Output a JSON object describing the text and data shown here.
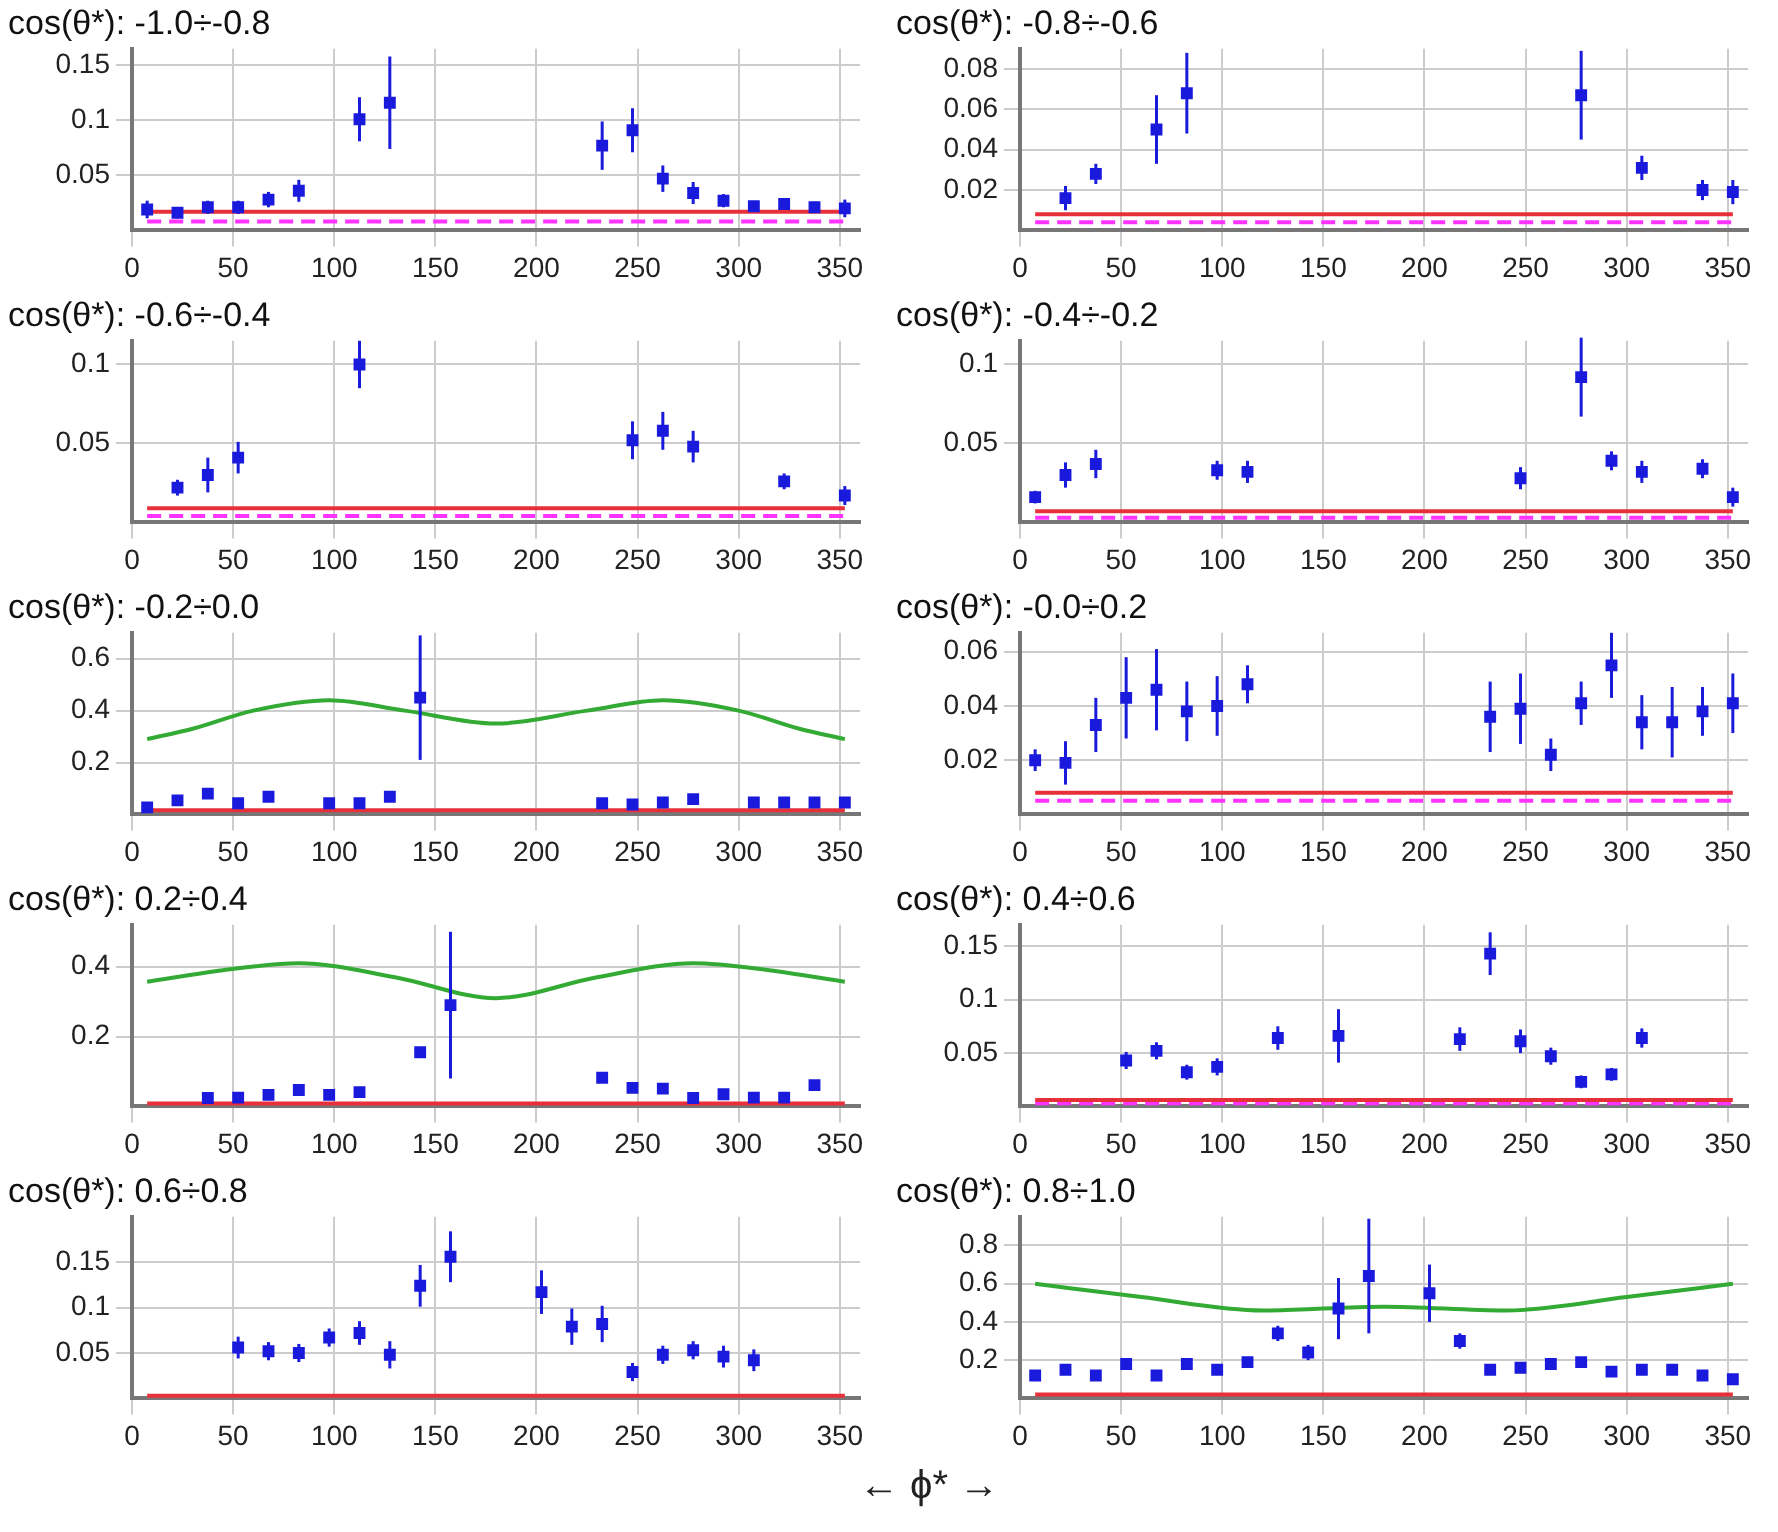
{
  "chart_data": [
    {
      "type": "scatter",
      "title": "cos(θ*): -1.0÷-0.8",
      "xlim": [
        0,
        360
      ],
      "xticks": [
        0,
        50,
        100,
        150,
        200,
        250,
        300,
        350
      ],
      "ylim": [
        0,
        0.165
      ],
      "yticks": [
        0.05,
        0.1,
        0.15
      ],
      "grid": true,
      "legend": false,
      "series": [
        {
          "type": "line",
          "color": "#e8303a",
          "x": [
            7.5,
            352.5
          ],
          "values": [
            0.017,
            0.017
          ]
        },
        {
          "type": "line",
          "color": "#ff33ff",
          "line_style": "dashed",
          "x": [
            7.5,
            352.5
          ],
          "values": [
            0.008,
            0.008
          ]
        },
        {
          "type": "scatter",
          "marker": "square",
          "color": "#1a1adc",
          "x": [
            7.5,
            22.5,
            37.5,
            52.5,
            67.5,
            82.5,
            112.5,
            127.5,
            232.5,
            247.5,
            262.5,
            277.5,
            292.5,
            307.5,
            322.5,
            337.5,
            352.5
          ],
          "values": [
            0.019,
            0.016,
            0.021,
            0.021,
            0.028,
            0.036,
            0.101,
            0.116,
            0.077,
            0.091,
            0.047,
            0.034,
            0.027,
            0.022,
            0.024,
            0.021,
            0.02
          ],
          "errors": [
            0.008,
            0.005,
            0.006,
            0.006,
            0.007,
            0.01,
            0.02,
            0.042,
            0.022,
            0.02,
            0.012,
            0.01,
            0.006,
            0.004,
            0.004,
            0.005,
            0.008
          ]
        }
      ]
    },
    {
      "type": "scatter",
      "title": "cos(θ*): -0.8÷-0.6",
      "xlim": [
        0,
        360
      ],
      "xticks": [
        0,
        50,
        100,
        150,
        200,
        250,
        300,
        350
      ],
      "ylim": [
        0,
        0.09
      ],
      "yticks": [
        0.02,
        0.04,
        0.06,
        0.08
      ],
      "grid": true,
      "legend": false,
      "series": [
        {
          "type": "line",
          "color": "#e8303a",
          "x": [
            7.5,
            352.5
          ],
          "values": [
            0.008,
            0.008
          ]
        },
        {
          "type": "line",
          "color": "#ff33ff",
          "line_style": "dashed",
          "x": [
            7.5,
            352.5
          ],
          "values": [
            0.004,
            0.004
          ]
        },
        {
          "type": "scatter",
          "marker": "square",
          "color": "#1a1adc",
          "x": [
            22.5,
            37.5,
            67.5,
            82.5,
            277.5,
            307.5,
            337.5,
            352.5
          ],
          "values": [
            0.016,
            0.028,
            0.05,
            0.068,
            0.067,
            0.031,
            0.02,
            0.019
          ],
          "errors": [
            0.006,
            0.005,
            0.017,
            0.02,
            0.022,
            0.006,
            0.005,
            0.006
          ]
        }
      ]
    },
    {
      "type": "scatter",
      "title": "cos(θ*): -0.6÷-0.4",
      "xlim": [
        0,
        360
      ],
      "xticks": [
        0,
        50,
        100,
        150,
        200,
        250,
        300,
        350
      ],
      "ylim": [
        0,
        0.115
      ],
      "yticks": [
        0.05,
        0.1
      ],
      "grid": true,
      "legend": false,
      "series": [
        {
          "type": "line",
          "color": "#e8303a",
          "x": [
            7.5,
            352.5
          ],
          "values": [
            0.009,
            0.009
          ]
        },
        {
          "type": "line",
          "color": "#ff33ff",
          "line_style": "dashed",
          "x": [
            7.5,
            352.5
          ],
          "values": [
            0.004,
            0.004
          ]
        },
        {
          "type": "scatter",
          "marker": "square",
          "color": "#1a1adc",
          "x": [
            22.5,
            37.5,
            52.5,
            112.5,
            247.5,
            262.5,
            277.5,
            322.5,
            352.5
          ],
          "values": [
            0.022,
            0.03,
            0.041,
            0.1,
            0.052,
            0.058,
            0.048,
            0.026,
            0.017
          ],
          "errors": [
            0.005,
            0.011,
            0.01,
            0.015,
            0.012,
            0.012,
            0.01,
            0.005,
            0.006
          ]
        }
      ]
    },
    {
      "type": "scatter",
      "title": "cos(θ*): -0.4÷-0.2",
      "xlim": [
        0,
        360
      ],
      "xticks": [
        0,
        50,
        100,
        150,
        200,
        250,
        300,
        350
      ],
      "ylim": [
        0,
        0.115
      ],
      "yticks": [
        0.05,
        0.1
      ],
      "grid": true,
      "legend": false,
      "series": [
        {
          "type": "line",
          "color": "#e8303a",
          "x": [
            7.5,
            352.5
          ],
          "values": [
            0.007,
            0.007
          ]
        },
        {
          "type": "line",
          "color": "#ff33ff",
          "line_style": "dashed",
          "x": [
            7.5,
            352.5
          ],
          "values": [
            0.003,
            0.003
          ]
        },
        {
          "type": "scatter",
          "marker": "square",
          "color": "#1a1adc",
          "x": [
            7.5,
            22.5,
            37.5,
            97.5,
            112.5,
            247.5,
            277.5,
            292.5,
            307.5,
            337.5,
            352.5
          ],
          "values": [
            0.016,
            0.03,
            0.037,
            0.033,
            0.032,
            0.028,
            0.092,
            0.039,
            0.032,
            0.034,
            0.016
          ],
          "errors": [
            0.004,
            0.008,
            0.009,
            0.006,
            0.007,
            0.007,
            0.025,
            0.006,
            0.007,
            0.006,
            0.006
          ]
        }
      ]
    },
    {
      "type": "scatter",
      "title": "cos(θ*): -0.2÷0.0",
      "xlim": [
        0,
        360
      ],
      "xticks": [
        0,
        50,
        100,
        150,
        200,
        250,
        300,
        350
      ],
      "ylim": [
        0,
        0.7
      ],
      "yticks": [
        0.2,
        0.4,
        0.6
      ],
      "grid": true,
      "legend": false,
      "series": [
        {
          "type": "line",
          "color": "#e8303a",
          "x": [
            7.5,
            352.5
          ],
          "values": [
            0.016,
            0.016
          ]
        },
        {
          "type": "line",
          "color": "#33aa33",
          "x": [
            7.5,
            30,
            60,
            97.5,
            135,
            180,
            225,
            262.5,
            300,
            330,
            352.5
          ],
          "values": [
            0.29,
            0.33,
            0.4,
            0.44,
            0.4,
            0.35,
            0.4,
            0.44,
            0.4,
            0.33,
            0.29
          ]
        },
        {
          "type": "scatter",
          "marker": "square",
          "color": "#1a1adc",
          "x": [
            7.5,
            22.5,
            37.5,
            52.5,
            67.5,
            97.5,
            112.5,
            127.5,
            142.5,
            232.5,
            247.5,
            262.5,
            277.5,
            307.5,
            322.5,
            337.5,
            352.5
          ],
          "values": [
            0.027,
            0.054,
            0.08,
            0.043,
            0.068,
            0.043,
            0.043,
            0.068,
            0.45,
            0.043,
            0.038,
            0.046,
            0.059,
            0.046,
            0.046,
            0.046,
            0.046
          ],
          "errors": [
            null,
            null,
            null,
            null,
            null,
            null,
            null,
            null,
            0.24,
            null,
            null,
            null,
            null,
            null,
            null,
            null,
            null
          ]
        }
      ]
    },
    {
      "type": "scatter",
      "title": "cos(θ*): -0.0÷0.2",
      "xlim": [
        0,
        360
      ],
      "xticks": [
        0,
        50,
        100,
        150,
        200,
        250,
        300,
        350
      ],
      "ylim": [
        0,
        0.067
      ],
      "yticks": [
        0.02,
        0.04,
        0.06
      ],
      "grid": true,
      "legend": false,
      "series": [
        {
          "type": "line",
          "color": "#e8303a",
          "x": [
            7.5,
            352.5
          ],
          "values": [
            0.008,
            0.008
          ]
        },
        {
          "type": "line",
          "color": "#ff33ff",
          "line_style": "dashed",
          "x": [
            7.5,
            352.5
          ],
          "values": [
            0.005,
            0.005
          ]
        },
        {
          "type": "scatter",
          "marker": "square",
          "color": "#1a1adc",
          "x": [
            7.5,
            22.5,
            37.5,
            52.5,
            67.5,
            82.5,
            97.5,
            112.5,
            232.5,
            247.5,
            262.5,
            277.5,
            292.5,
            307.5,
            322.5,
            337.5,
            352.5
          ],
          "values": [
            0.02,
            0.019,
            0.033,
            0.043,
            0.046,
            0.038,
            0.04,
            0.048,
            0.036,
            0.039,
            0.022,
            0.041,
            0.055,
            0.034,
            0.034,
            0.038,
            0.041
          ],
          "errors": [
            0.004,
            0.008,
            0.01,
            0.015,
            0.015,
            0.011,
            0.011,
            0.007,
            0.013,
            0.013,
            0.006,
            0.008,
            0.012,
            0.01,
            0.013,
            0.009,
            0.011
          ]
        }
      ]
    },
    {
      "type": "scatter",
      "title": "cos(θ*): 0.2÷0.4",
      "xlim": [
        0,
        360
      ],
      "xticks": [
        0,
        50,
        100,
        150,
        200,
        250,
        300,
        350
      ],
      "ylim": [
        0,
        0.52
      ],
      "yticks": [
        0.2,
        0.4
      ],
      "grid": true,
      "legend": false,
      "series": [
        {
          "type": "line",
          "color": "#e8303a",
          "x": [
            7.5,
            352.5
          ],
          "values": [
            0.008,
            0.008
          ]
        },
        {
          "type": "line",
          "color": "#33aa33",
          "x": [
            7.5,
            45,
            82.5,
            130,
            180,
            230,
            277.5,
            315,
            352.5
          ],
          "values": [
            0.357,
            0.39,
            0.41,
            0.37,
            0.31,
            0.37,
            0.41,
            0.39,
            0.357
          ]
        },
        {
          "type": "scatter",
          "marker": "square",
          "color": "#1a1adc",
          "x": [
            37.5,
            52.5,
            67.5,
            82.5,
            97.5,
            112.5,
            142.5,
            157.5,
            232.5,
            247.5,
            262.5,
            277.5,
            292.5,
            307.5,
            322.5,
            337.5
          ],
          "values": [
            0.024,
            0.025,
            0.033,
            0.047,
            0.033,
            0.041,
            0.155,
            0.29,
            0.082,
            0.053,
            0.051,
            0.024,
            0.035,
            0.025,
            0.025,
            0.061
          ],
          "errors": [
            null,
            null,
            null,
            null,
            null,
            null,
            0.015,
            0.21,
            0.012,
            null,
            null,
            null,
            null,
            null,
            null,
            null
          ]
        }
      ]
    },
    {
      "type": "scatter",
      "title": "cos(θ*): 0.4÷0.6",
      "xlim": [
        0,
        360
      ],
      "xticks": [
        0,
        50,
        100,
        150,
        200,
        250,
        300,
        350
      ],
      "ylim": [
        0,
        0.17
      ],
      "yticks": [
        0.05,
        0.1,
        0.15
      ],
      "grid": true,
      "legend": false,
      "series": [
        {
          "type": "line",
          "color": "#e8303a",
          "x": [
            7.5,
            352.5
          ],
          "values": [
            0.006,
            0.006
          ]
        },
        {
          "type": "line",
          "color": "#ff33ff",
          "line_style": "dashed",
          "x": [
            7.5,
            352.5
          ],
          "values": [
            0.003,
            0.003
          ]
        },
        {
          "type": "scatter",
          "marker": "square",
          "color": "#1a1adc",
          "x": [
            52.5,
            67.5,
            82.5,
            97.5,
            127.5,
            157.5,
            217.5,
            232.5,
            247.5,
            262.5,
            277.5,
            292.5,
            307.5
          ],
          "values": [
            0.043,
            0.052,
            0.032,
            0.037,
            0.064,
            0.066,
            0.063,
            0.143,
            0.061,
            0.047,
            0.023,
            0.03,
            0.064
          ],
          "errors": [
            0.008,
            0.008,
            0.007,
            0.008,
            0.011,
            0.025,
            0.011,
            0.02,
            0.011,
            0.008,
            0.006,
            0.006,
            0.009
          ]
        }
      ]
    },
    {
      "type": "scatter",
      "title": "cos(θ*): 0.6÷0.8",
      "xlim": [
        0,
        360
      ],
      "xticks": [
        0,
        50,
        100,
        150,
        200,
        250,
        300,
        350
      ],
      "ylim": [
        0,
        0.2
      ],
      "yticks": [
        0.05,
        0.1,
        0.15
      ],
      "grid": true,
      "legend": false,
      "series": [
        {
          "type": "line",
          "color": "#e8303a",
          "x": [
            7.5,
            352.5
          ],
          "values": [
            0.003,
            0.003
          ]
        },
        {
          "type": "scatter",
          "marker": "square",
          "color": "#1a1adc",
          "x": [
            52.5,
            67.5,
            82.5,
            97.5,
            112.5,
            127.5,
            142.5,
            157.5,
            202.5,
            217.5,
            232.5,
            247.5,
            262.5,
            277.5,
            292.5,
            307.5
          ],
          "values": [
            0.056,
            0.052,
            0.05,
            0.067,
            0.072,
            0.048,
            0.124,
            0.156,
            0.117,
            0.079,
            0.082,
            0.029,
            0.048,
            0.053,
            0.046,
            0.042
          ],
          "errors": [
            0.012,
            0.01,
            0.01,
            0.01,
            0.013,
            0.015,
            0.023,
            0.028,
            0.024,
            0.02,
            0.02,
            0.01,
            0.01,
            0.01,
            0.012,
            0.012
          ]
        }
      ]
    },
    {
      "type": "scatter",
      "title": "cos(θ*): 0.8÷1.0",
      "xlim": [
        0,
        360
      ],
      "xticks": [
        0,
        50,
        100,
        150,
        200,
        250,
        300,
        350
      ],
      "ylim": [
        0,
        0.95
      ],
      "yticks": [
        0.2,
        0.4,
        0.6,
        0.8
      ],
      "grid": true,
      "legend": false,
      "annotations": [
        "←   ϕ*   →"
      ],
      "series": [
        {
          "type": "line",
          "color": "#e8303a",
          "x": [
            7.5,
            352.5
          ],
          "values": [
            0.02,
            0.02
          ]
        },
        {
          "type": "line",
          "color": "#33aa33",
          "x": [
            7.5,
            60,
            120,
            180,
            240,
            300,
            352.5
          ],
          "values": [
            0.6,
            0.53,
            0.46,
            0.48,
            0.46,
            0.53,
            0.6
          ]
        },
        {
          "type": "scatter",
          "marker": "square",
          "color": "#1a1adc",
          "x": [
            7.5,
            22.5,
            37.5,
            52.5,
            67.5,
            82.5,
            97.5,
            112.5,
            127.5,
            142.5,
            157.5,
            172.5,
            202.5,
            217.5,
            232.5,
            247.5,
            262.5,
            277.5,
            292.5,
            307.5,
            322.5,
            337.5,
            352.5
          ],
          "values": [
            0.12,
            0.15,
            0.12,
            0.18,
            0.12,
            0.18,
            0.15,
            0.19,
            0.34,
            0.24,
            0.47,
            0.64,
            0.55,
            0.3,
            0.15,
            0.16,
            0.18,
            0.19,
            0.14,
            0.15,
            0.15,
            0.12,
            0.1
          ],
          "errors": [
            null,
            null,
            null,
            null,
            null,
            null,
            null,
            null,
            0.04,
            0.04,
            0.16,
            0.3,
            0.15,
            0.04,
            null,
            null,
            null,
            null,
            null,
            null,
            null,
            null,
            null
          ]
        }
      ]
    }
  ]
}
